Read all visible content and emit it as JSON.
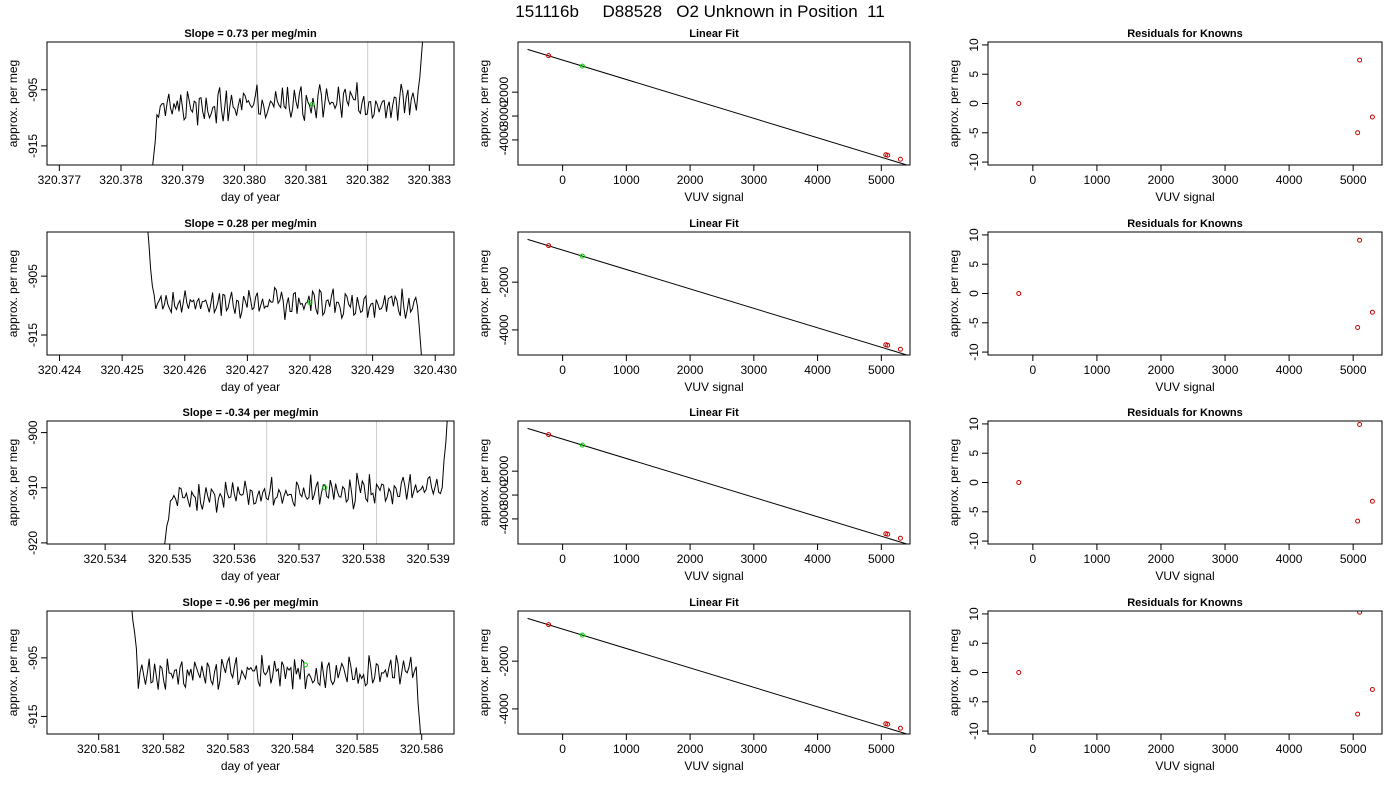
{
  "page_title": "151116b     D88528   O2 Unknown in Position  11",
  "colors": {
    "trace": "#000000",
    "highlight": "#00cc00",
    "known_point": "#cc0000",
    "marker_line": "#cccccc"
  },
  "chart_data": [
    {
      "type": "line",
      "row": 0,
      "title": "Slope =  0.73  per meg/min",
      "xlabel": "day of year",
      "ylabel": "approx. per meg",
      "xlim": [
        320.3768,
        320.3834
      ],
      "ylim": [
        -918.4,
        -896.5
      ],
      "xticks": [
        320.377,
        320.378,
        320.379,
        320.38,
        320.381,
        320.382,
        320.383
      ],
      "xtick_labels": [
        "320.377",
        "320.378",
        "320.379",
        "320.380",
        "320.381",
        "320.382",
        "320.383"
      ],
      "yticks": [
        -905,
        -915
      ],
      "ytick_labels": [
        "-905",
        "-915"
      ],
      "markers": [
        320.3802,
        320.382
      ],
      "trace": {
        "x_start": 320.3785,
        "x_end": 320.3829,
        "baseline": -907.5,
        "amp": 2.5,
        "seed": 3,
        "start_y": -920,
        "end_y": -895,
        "ramp": 0.04
      },
      "highlight": {
        "x": 320.3811,
        "y": -907.6
      }
    },
    {
      "type": "scatter",
      "row": 0,
      "title": "Linear Fit",
      "xlabel": "VUV signal",
      "ylabel": "approx. per meg",
      "xlim": [
        -700,
        5450
      ],
      "ylim": [
        -5050,
        100
      ],
      "xticks": [
        0,
        1000,
        2000,
        3000,
        4000,
        5000
      ],
      "xtick_labels": [
        "0",
        "1000",
        "2000",
        "3000",
        "4000",
        "5000"
      ],
      "yticks": [
        -2000,
        -3000,
        -4000
      ],
      "ytick_labels": [
        "-2000",
        "-3000",
        "-4000"
      ],
      "fit_line": {
        "x": [
          -550,
          5450
        ],
        "y": [
          -210,
          -5090
        ]
      },
      "known_points": {
        "x": [
          -220,
          5070,
          5100,
          5300
        ],
        "y": [
          -470,
          -4620,
          -4640,
          -4810
        ]
      },
      "unknown_point": {
        "x": 310,
        "y": -910
      }
    },
    {
      "type": "scatter",
      "row": 0,
      "title": "Residuals for Knowns",
      "xlabel": "VUV signal",
      "ylabel": "approx. per meg",
      "xlim": [
        -700,
        5450
      ],
      "ylim": [
        -10.5,
        10.5
      ],
      "xticks": [
        0,
        1000,
        2000,
        3000,
        4000,
        5000
      ],
      "xtick_labels": [
        "0",
        "1000",
        "2000",
        "3000",
        "4000",
        "5000"
      ],
      "yticks": [
        10,
        5,
        0,
        -5,
        -10
      ],
      "ytick_labels": [
        "10",
        "5",
        "0",
        "-5",
        "-10"
      ],
      "points": {
        "x": [
          -220,
          5070,
          5100,
          5300
        ],
        "y": [
          0,
          -5,
          7.4,
          -2.3
        ]
      }
    },
    {
      "type": "line",
      "row": 1,
      "title": "Slope =  0.28  per meg/min",
      "xlabel": "day of year",
      "ylabel": "approx. per meg",
      "xlim": [
        320.4238,
        320.4303
      ],
      "ylim": [
        -918.4,
        -897.5
      ],
      "xticks": [
        320.424,
        320.425,
        320.426,
        320.427,
        320.428,
        320.429,
        320.43
      ],
      "xtick_labels": [
        "320.424",
        "320.425",
        "320.426",
        "320.427",
        "320.428",
        "320.429",
        "320.430"
      ],
      "yticks": [
        -905,
        -915
      ],
      "ytick_labels": [
        "-905",
        "-915"
      ],
      "markers": [
        320.4271,
        320.4289
      ],
      "trace": {
        "x_start": 320.4254,
        "x_end": 320.4298,
        "baseline": -909.5,
        "amp": 2.0,
        "seed": 7,
        "start_y": -896,
        "end_y": -922,
        "ramp": 0.0
      },
      "highlight": {
        "x": 320.428,
        "y": -909.5
      }
    },
    {
      "type": "scatter",
      "row": 1,
      "title": "Linear Fit",
      "xlabel": "VUV signal",
      "ylabel": "approx. per meg",
      "xlim": [
        -700,
        5450
      ],
      "ylim": [
        -5050,
        100
      ],
      "xticks": [
        0,
        1000,
        2000,
        3000,
        4000,
        5000
      ],
      "xtick_labels": [
        "0",
        "1000",
        "2000",
        "3000",
        "4000",
        "5000"
      ],
      "yticks": [
        -2000,
        -4000
      ],
      "ytick_labels": [
        "-2000",
        "-4000"
      ],
      "fit_line": {
        "x": [
          -550,
          5450
        ],
        "y": [
          -210,
          -5090
        ]
      },
      "known_points": {
        "x": [
          -220,
          5070,
          5100,
          5300
        ],
        "y": [
          -470,
          -4620,
          -4640,
          -4810
        ]
      },
      "unknown_point": {
        "x": 310,
        "y": -910
      }
    },
    {
      "type": "scatter",
      "row": 1,
      "title": "Residuals for Knowns",
      "xlabel": "VUV signal",
      "ylabel": "approx. per meg",
      "xlim": [
        -700,
        5450
      ],
      "ylim": [
        -10.5,
        10.5
      ],
      "xticks": [
        0,
        1000,
        2000,
        3000,
        4000,
        5000
      ],
      "xtick_labels": [
        "0",
        "1000",
        "2000",
        "3000",
        "4000",
        "5000"
      ],
      "yticks": [
        10,
        5,
        0,
        -5,
        -10
      ],
      "ytick_labels": [
        "10",
        "5",
        "0",
        "-5",
        "-10"
      ],
      "points": {
        "x": [
          -220,
          5070,
          5100,
          5300
        ],
        "y": [
          0,
          -5.8,
          9.1,
          -3.2
        ]
      }
    },
    {
      "type": "line",
      "row": 2,
      "title": "Slope =  -0.34  per meg/min",
      "xlabel": "day of year",
      "ylabel": "approx. per meg",
      "xlim": [
        320.5331,
        320.5394
      ],
      "ylim": [
        -920.2,
        -897.9
      ],
      "xticks": [
        320.534,
        320.535,
        320.536,
        320.537,
        320.538,
        320.539
      ],
      "xtick_labels": [
        "320.534",
        "320.535",
        "320.536",
        "320.537",
        "320.538",
        "320.539"
      ],
      "yticks": [
        -900,
        -910,
        -920
      ],
      "ytick_labels": [
        "-900",
        "-910",
        "-920"
      ],
      "markers": [
        320.5365,
        320.5382
      ],
      "trace": {
        "x_start": 320.5349,
        "x_end": 320.5393,
        "baseline": -911,
        "amp": 2.3,
        "seed": 11,
        "start_y": -922,
        "end_y": -897,
        "ramp": 0.05
      },
      "highlight": {
        "x": 320.5374,
        "y": -910.0
      }
    },
    {
      "type": "scatter",
      "row": 2,
      "title": "Linear Fit",
      "xlabel": "VUV signal",
      "ylabel": "approx. per meg",
      "xlim": [
        -700,
        5450
      ],
      "ylim": [
        -5050,
        100
      ],
      "xticks": [
        0,
        1000,
        2000,
        3000,
        4000,
        5000
      ],
      "xtick_labels": [
        "0",
        "1000",
        "2000",
        "3000",
        "4000",
        "5000"
      ],
      "yticks": [
        -2000,
        -3000,
        -4000
      ],
      "ytick_labels": [
        "-2000",
        "-3000",
        "-4000"
      ],
      "fit_line": {
        "x": [
          -550,
          5450
        ],
        "y": [
          -210,
          -5090
        ]
      },
      "known_points": {
        "x": [
          -220,
          5070,
          5100,
          5300
        ],
        "y": [
          -470,
          -4620,
          -4640,
          -4810
        ]
      },
      "unknown_point": {
        "x": 310,
        "y": -910
      }
    },
    {
      "type": "scatter",
      "row": 2,
      "title": "Residuals for Knowns",
      "xlabel": "VUV signal",
      "ylabel": "approx. per meg",
      "xlim": [
        -700,
        5450
      ],
      "ylim": [
        -10.5,
        10.5
      ],
      "xticks": [
        0,
        1000,
        2000,
        3000,
        4000,
        5000
      ],
      "xtick_labels": [
        "0",
        "1000",
        "2000",
        "3000",
        "4000",
        "5000"
      ],
      "yticks": [
        10,
        5,
        0,
        -5,
        -10
      ],
      "ytick_labels": [
        "10",
        "5",
        "0",
        "-5",
        "-10"
      ],
      "points": {
        "x": [
          -220,
          5070,
          5100,
          5300
        ],
        "y": [
          0,
          -6.6,
          9.9,
          -3.2
        ]
      }
    },
    {
      "type": "line",
      "row": 3,
      "title": "Slope =  -0.96  per meg/min",
      "xlabel": "day of year",
      "ylabel": "approx. per meg",
      "xlim": [
        320.5802,
        320.5865
      ],
      "ylim": [
        -918.0,
        -897.0
      ],
      "xticks": [
        320.581,
        320.582,
        320.583,
        320.584,
        320.585,
        320.586
      ],
      "xtick_labels": [
        "320.581",
        "320.582",
        "320.583",
        "320.584",
        "320.585",
        "320.586"
      ],
      "yticks": [
        -905,
        -915
      ],
      "ytick_labels": [
        "-905",
        "-915"
      ],
      "markers": [
        320.5834,
        320.5851
      ],
      "trace": {
        "x_start": 320.5815,
        "x_end": 320.586,
        "baseline": -907.5,
        "amp": 2.2,
        "seed": 17,
        "start_y": -895,
        "end_y": -921,
        "ramp": 0.0
      },
      "highlight": {
        "x": 320.5842,
        "y": -906.2
      }
    },
    {
      "type": "scatter",
      "row": 3,
      "title": "Linear Fit",
      "xlabel": "VUV signal",
      "ylabel": "approx. per meg",
      "xlim": [
        -700,
        5450
      ],
      "ylim": [
        -5050,
        100
      ],
      "xticks": [
        0,
        1000,
        2000,
        3000,
        4000,
        5000
      ],
      "xtick_labels": [
        "0",
        "1000",
        "2000",
        "3000",
        "4000",
        "5000"
      ],
      "yticks": [
        -2000,
        -4000
      ],
      "ytick_labels": [
        "-2000",
        "-4000"
      ],
      "fit_line": {
        "x": [
          -550,
          5450
        ],
        "y": [
          -210,
          -5090
        ]
      },
      "known_points": {
        "x": [
          -220,
          5070,
          5100,
          5300
        ],
        "y": [
          -470,
          -4620,
          -4640,
          -4810
        ]
      },
      "unknown_point": {
        "x": 310,
        "y": -910
      }
    },
    {
      "type": "scatter",
      "row": 3,
      "title": "Residuals for Knowns",
      "xlabel": "VUV signal",
      "ylabel": "approx. per meg",
      "xlim": [
        -700,
        5450
      ],
      "ylim": [
        -10.5,
        10.5
      ],
      "xticks": [
        0,
        1000,
        2000,
        3000,
        4000,
        5000
      ],
      "xtick_labels": [
        "0",
        "1000",
        "2000",
        "3000",
        "4000",
        "5000"
      ],
      "yticks": [
        10,
        5,
        0,
        -5,
        -10
      ],
      "ytick_labels": [
        "10",
        "5",
        "0",
        "-5",
        "-10"
      ],
      "points": {
        "x": [
          -220,
          5070,
          5100,
          5300
        ],
        "y": [
          0,
          -7.1,
          10.3,
          -2.9
        ]
      }
    }
  ]
}
